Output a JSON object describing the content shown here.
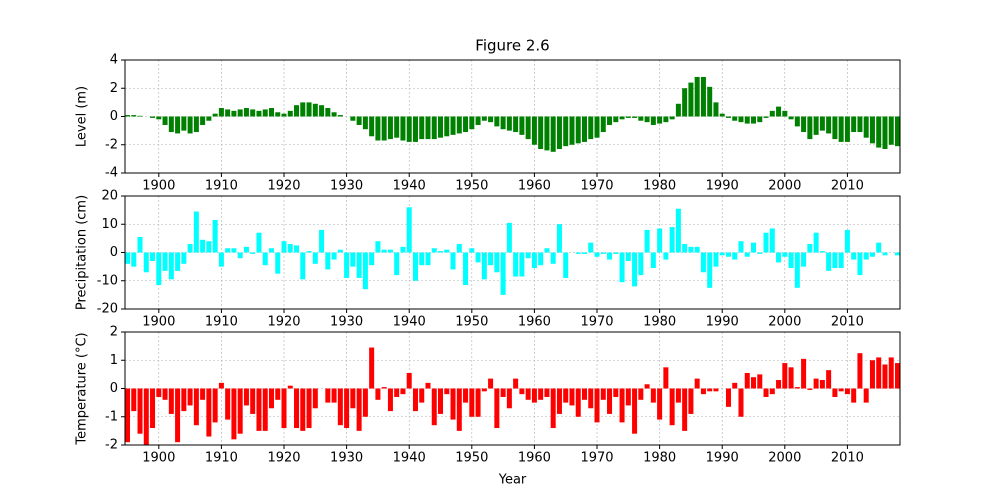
{
  "chart_data": [
    {
      "type": "bar",
      "title": "Figure 2.6",
      "ylabel": "Level (m)",
      "color": "#008000",
      "grid": true,
      "xlim": [
        1894.6,
        2018.4
      ],
      "xticks": [
        1900,
        1910,
        1920,
        1930,
        1940,
        1950,
        1960,
        1970,
        1980,
        1990,
        2000,
        2010
      ],
      "ylim": [
        -4,
        4
      ],
      "yticks": [
        -4,
        -2,
        0,
        2,
        4
      ],
      "x": [
        1895,
        1896,
        1897,
        1898,
        1899,
        1900,
        1901,
        1902,
        1903,
        1904,
        1905,
        1906,
        1907,
        1908,
        1909,
        1910,
        1911,
        1912,
        1913,
        1914,
        1915,
        1916,
        1917,
        1918,
        1919,
        1920,
        1921,
        1922,
        1923,
        1924,
        1925,
        1926,
        1927,
        1928,
        1929,
        1930,
        1931,
        1932,
        1933,
        1934,
        1935,
        1936,
        1937,
        1938,
        1939,
        1940,
        1941,
        1942,
        1943,
        1944,
        1945,
        1946,
        1947,
        1948,
        1949,
        1950,
        1951,
        1952,
        1953,
        1954,
        1955,
        1956,
        1957,
        1958,
        1959,
        1960,
        1961,
        1962,
        1963,
        1964,
        1965,
        1966,
        1967,
        1968,
        1969,
        1970,
        1971,
        1972,
        1973,
        1974,
        1975,
        1976,
        1977,
        1978,
        1979,
        1980,
        1981,
        1982,
        1983,
        1984,
        1985,
        1986,
        1987,
        1988,
        1989,
        1990,
        1991,
        1992,
        1993,
        1994,
        1995,
        1996,
        1997,
        1998,
        1999,
        2000,
        2001,
        2002,
        2003,
        2004,
        2005,
        2006,
        2007,
        2008,
        2009,
        2010,
        2011,
        2012,
        2013,
        2014,
        2015,
        2016,
        2017,
        2018
      ],
      "values": [
        0.1,
        0.1,
        0.05,
        0,
        -0.1,
        -0.2,
        -0.6,
        -1.1,
        -1.2,
        -1.0,
        -1.2,
        -1.1,
        -0.6,
        -0.3,
        0.2,
        0.6,
        0.5,
        0.4,
        0.5,
        0.6,
        0.5,
        0.4,
        0.5,
        0.6,
        0.3,
        0.2,
        0.4,
        0.8,
        1.0,
        1.0,
        0.9,
        0.8,
        0.6,
        0.3,
        0.1,
        0.0,
        -0.3,
        -0.6,
        -0.9,
        -1.4,
        -1.7,
        -1.7,
        -1.6,
        -1.5,
        -1.7,
        -1.8,
        -1.8,
        -1.6,
        -1.6,
        -1.6,
        -1.5,
        -1.4,
        -1.3,
        -1.2,
        -1.1,
        -0.9,
        -0.6,
        -0.3,
        -0.4,
        -0.7,
        -0.9,
        -1.0,
        -1.1,
        -1.3,
        -1.6,
        -2.0,
        -2.3,
        -2.4,
        -2.5,
        -2.3,
        -2.1,
        -2.0,
        -1.9,
        -1.8,
        -1.6,
        -1.5,
        -1.1,
        -0.6,
        -0.4,
        -0.2,
        -0.1,
        -0.1,
        -0.3,
        -0.4,
        -0.6,
        -0.5,
        -0.4,
        -0.2,
        0.9,
        2.0,
        2.4,
        2.8,
        2.8,
        2.1,
        1.0,
        0.2,
        -0.1,
        -0.3,
        -0.4,
        -0.5,
        -0.5,
        -0.4,
        -0.1,
        0.4,
        0.7,
        0.4,
        -0.2,
        -0.7,
        -1.1,
        -1.6,
        -1.3,
        -1.0,
        -1.2,
        -1.6,
        -1.8,
        -1.8,
        -1.1,
        -1.1,
        -1.5,
        -1.9,
        -2.2,
        -2.3,
        -2.0,
        -2.1
      ]
    },
    {
      "type": "bar",
      "ylabel": "Precipitation (cm)",
      "color": "#00ffff",
      "grid": true,
      "xlim": [
        1894.6,
        2018.4
      ],
      "xticks": [
        1900,
        1910,
        1920,
        1930,
        1940,
        1950,
        1960,
        1970,
        1980,
        1990,
        2000,
        2010
      ],
      "ylim": [
        -20,
        20
      ],
      "yticks": [
        -20,
        -10,
        0,
        10,
        20
      ],
      "x": [
        1895,
        1896,
        1897,
        1898,
        1899,
        1900,
        1901,
        1902,
        1903,
        1904,
        1905,
        1906,
        1907,
        1908,
        1909,
        1910,
        1911,
        1912,
        1913,
        1914,
        1915,
        1916,
        1917,
        1918,
        1919,
        1920,
        1921,
        1922,
        1923,
        1924,
        1925,
        1926,
        1927,
        1928,
        1929,
        1930,
        1931,
        1932,
        1933,
        1934,
        1935,
        1936,
        1937,
        1938,
        1939,
        1940,
        1941,
        1942,
        1943,
        1944,
        1945,
        1946,
        1947,
        1948,
        1949,
        1950,
        1951,
        1952,
        1953,
        1954,
        1955,
        1956,
        1957,
        1958,
        1959,
        1960,
        1961,
        1962,
        1963,
        1964,
        1965,
        1966,
        1967,
        1968,
        1969,
        1970,
        1971,
        1972,
        1973,
        1974,
        1975,
        1976,
        1977,
        1978,
        1979,
        1980,
        1981,
        1982,
        1983,
        1984,
        1985,
        1986,
        1987,
        1988,
        1989,
        1990,
        1991,
        1992,
        1993,
        1994,
        1995,
        1996,
        1997,
        1998,
        1999,
        2000,
        2001,
        2002,
        2003,
        2004,
        2005,
        2006,
        2007,
        2008,
        2009,
        2010,
        2011,
        2012,
        2013,
        2014,
        2015,
        2016,
        2017,
        2018
      ],
      "values": [
        -4,
        -5,
        5.5,
        -7,
        -3,
        -11.5,
        -6.5,
        -9.5,
        -6.5,
        -4,
        3,
        14.5,
        4.5,
        4,
        11.5,
        -5,
        1.5,
        1.5,
        -2,
        2,
        -0.5,
        7,
        -4.5,
        1.5,
        -7.5,
        4,
        3,
        2.5,
        -9.5,
        0.5,
        -4,
        8,
        -6,
        -2.5,
        1,
        -9,
        -5,
        -9,
        -13,
        -4.5,
        4,
        1,
        1,
        -8,
        2,
        16,
        -10,
        -4.5,
        -4.5,
        1.5,
        0.5,
        1,
        -6,
        3,
        -11.5,
        1.5,
        -3.5,
        -9.5,
        -4.5,
        -7,
        -15,
        10.5,
        -8.5,
        -8.5,
        -2,
        -5.5,
        -4.5,
        1.5,
        -4,
        10,
        -9,
        0,
        -0.5,
        -0.5,
        3.5,
        -1.5,
        -0.5,
        -2.5,
        -0.5,
        -10.5,
        -3,
        -12,
        -8,
        8,
        -5.5,
        8.5,
        -2.5,
        9,
        15.5,
        3,
        2,
        2,
        -7,
        -12.5,
        -5,
        -1,
        -1.5,
        -2.5,
        4,
        -1.5,
        3.5,
        -0.5,
        7,
        8.5,
        -3.5,
        -1.5,
        -5.5,
        -12.5,
        -5,
        3,
        7,
        0.5,
        -6.5,
        -5.5,
        -5.5,
        8,
        -2.5,
        -8,
        -2.5,
        -1.5,
        3.5,
        -1,
        0,
        -1
      ]
    },
    {
      "type": "bar",
      "ylabel": "Temperature (°C)",
      "xlabel": "Year",
      "color": "#ff0000",
      "grid": true,
      "xlim": [
        1894.6,
        2018.4
      ],
      "xticks": [
        1900,
        1910,
        1920,
        1930,
        1940,
        1950,
        1960,
        1970,
        1980,
        1990,
        2000,
        2010
      ],
      "ylim": [
        -2,
        2
      ],
      "yticks": [
        -2,
        -1,
        0,
        1,
        2
      ],
      "x": [
        1895,
        1896,
        1897,
        1898,
        1899,
        1900,
        1901,
        1902,
        1903,
        1904,
        1905,
        1906,
        1907,
        1908,
        1909,
        1910,
        1911,
        1912,
        1913,
        1914,
        1915,
        1916,
        1917,
        1918,
        1919,
        1920,
        1921,
        1922,
        1923,
        1924,
        1925,
        1926,
        1927,
        1928,
        1929,
        1930,
        1931,
        1932,
        1933,
        1934,
        1935,
        1936,
        1937,
        1938,
        1939,
        1940,
        1941,
        1942,
        1943,
        1944,
        1945,
        1946,
        1947,
        1948,
        1949,
        1950,
        1951,
        1952,
        1953,
        1954,
        1955,
        1956,
        1957,
        1958,
        1959,
        1960,
        1961,
        1962,
        1963,
        1964,
        1965,
        1966,
        1967,
        1968,
        1969,
        1970,
        1971,
        1972,
        1973,
        1974,
        1975,
        1976,
        1977,
        1978,
        1979,
        1980,
        1981,
        1982,
        1983,
        1984,
        1985,
        1986,
        1987,
        1988,
        1989,
        1990,
        1991,
        1992,
        1993,
        1994,
        1995,
        1996,
        1997,
        1998,
        1999,
        2000,
        2001,
        2002,
        2003,
        2004,
        2005,
        2006,
        2007,
        2008,
        2009,
        2010,
        2011,
        2012,
        2013,
        2014,
        2015,
        2016,
        2017,
        2018
      ],
      "values": [
        -1.9,
        -0.8,
        -1.6,
        -2.0,
        -1.4,
        -0.3,
        -0.4,
        -0.9,
        -1.9,
        -0.8,
        -0.6,
        -1.3,
        -0.4,
        -1.7,
        -1.2,
        0.2,
        -1.1,
        -1.8,
        -1.6,
        -0.6,
        -0.9,
        -1.5,
        -1.5,
        -0.7,
        -0.4,
        -1.4,
        0.1,
        -1.4,
        -1.5,
        -1.4,
        -0.7,
        0,
        -0.5,
        -0.5,
        -1.3,
        -1.4,
        -0.7,
        -1.5,
        -1.0,
        1.45,
        -0.4,
        0.05,
        -0.8,
        -0.3,
        -0.2,
        0.55,
        -0.8,
        -0.5,
        0.2,
        -1.3,
        -0.9,
        -0.2,
        -1.1,
        -1.5,
        -0.5,
        -1.0,
        -1.0,
        -0.1,
        0.35,
        -1.4,
        -0.3,
        -0.7,
        0.35,
        -0.2,
        -0.4,
        -0.5,
        -0.4,
        -0.3,
        -1.4,
        -0.9,
        -0.5,
        -0.6,
        -1.0,
        -0.4,
        -0.7,
        -1.2,
        -0.4,
        -0.9,
        -0.3,
        -1.2,
        -0.6,
        -1.6,
        -0.4,
        0.15,
        -0.5,
        -1.1,
        0.75,
        -1.3,
        -0.5,
        -1.5,
        -0.9,
        0.35,
        -0.2,
        -0.1,
        -0.1,
        0,
        -0.65,
        0.2,
        -1.0,
        0.55,
        0.4,
        0.5,
        -0.3,
        -0.2,
        0.3,
        0.9,
        0.75,
        0.05,
        1.05,
        -0.05,
        0.35,
        0.3,
        0.65,
        -0.3,
        -0.1,
        -0.2,
        -0.5,
        1.25,
        -0.5,
        1.0,
        1.1,
        0.85,
        1.1,
        0.9
      ]
    }
  ]
}
